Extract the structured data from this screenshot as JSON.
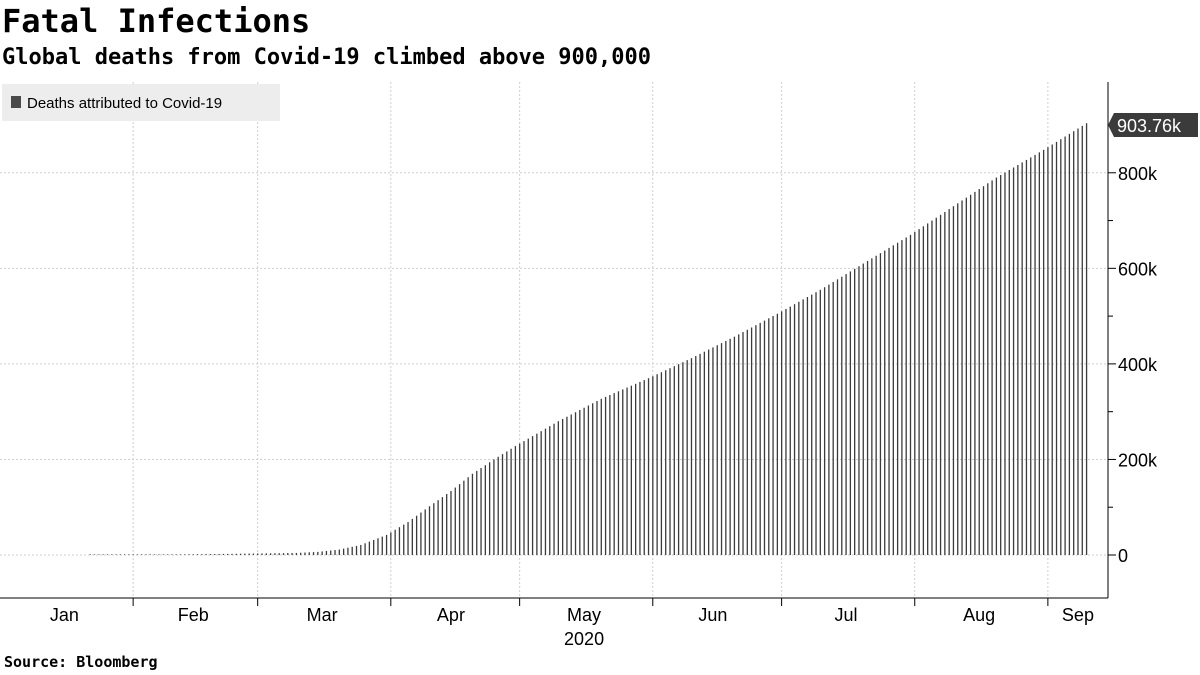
{
  "title": "Fatal Infections",
  "subtitle": "Global deaths from Covid-19 climbed above 900,000",
  "source": "Source: Bloomberg",
  "colors": {
    "bars": "#3b3b3b",
    "grid": "#cfcfcf",
    "legend_bg": "#ededed",
    "callout_bg": "#3b3b3b"
  },
  "chart_data": {
    "type": "bar",
    "x_start": "2020-01-01",
    "x_end": "2020-09-15",
    "x_dates": {
      "start": "2020-01-22",
      "end": "2020-09-10"
    },
    "legend": {
      "label": "Deaths attributed to Covid-19",
      "placement": "top-left"
    },
    "last_value_label": "903.76k",
    "xaxis": {
      "month_labels": [
        "Jan",
        "Feb",
        "Mar",
        "Apr",
        "May",
        "Jun",
        "Jul",
        "Aug",
        "Sep"
      ],
      "year_label": "2020"
    },
    "yaxis": {
      "position": "right",
      "ylim": [
        -90000,
        990000
      ],
      "ticks": [
        0,
        200000,
        400000,
        600000,
        800000
      ],
      "tick_labels": [
        "0",
        "200k",
        "400k",
        "600k",
        "800k"
      ]
    },
    "grid": true,
    "anchor_values": [
      {
        "date": "2020-01-22",
        "value": 17
      },
      {
        "date": "2020-02-10",
        "value": 1000
      },
      {
        "date": "2020-02-28",
        "value": 2900
      },
      {
        "date": "2020-03-10",
        "value": 4300
      },
      {
        "date": "2020-03-15",
        "value": 6500
      },
      {
        "date": "2020-03-20",
        "value": 11400
      },
      {
        "date": "2020-03-25",
        "value": 21000
      },
      {
        "date": "2020-03-31",
        "value": 42000
      },
      {
        "date": "2020-04-05",
        "value": 69000
      },
      {
        "date": "2020-04-10",
        "value": 102000
      },
      {
        "date": "2020-04-15",
        "value": 134000
      },
      {
        "date": "2020-04-20",
        "value": 170000
      },
      {
        "date": "2020-04-25",
        "value": 200000
      },
      {
        "date": "2020-04-30",
        "value": 228000
      },
      {
        "date": "2020-05-10",
        "value": 280000
      },
      {
        "date": "2020-05-20",
        "value": 327000
      },
      {
        "date": "2020-05-31",
        "value": 370000
      },
      {
        "date": "2020-06-10",
        "value": 412000
      },
      {
        "date": "2020-06-20",
        "value": 457000
      },
      {
        "date": "2020-06-30",
        "value": 505000
      },
      {
        "date": "2020-07-10",
        "value": 555000
      },
      {
        "date": "2020-07-20",
        "value": 610000
      },
      {
        "date": "2020-07-31",
        "value": 670000
      },
      {
        "date": "2020-08-10",
        "value": 730000
      },
      {
        "date": "2020-08-20",
        "value": 790000
      },
      {
        "date": "2020-08-31",
        "value": 848000
      },
      {
        "date": "2020-09-10",
        "value": 903760
      }
    ]
  }
}
